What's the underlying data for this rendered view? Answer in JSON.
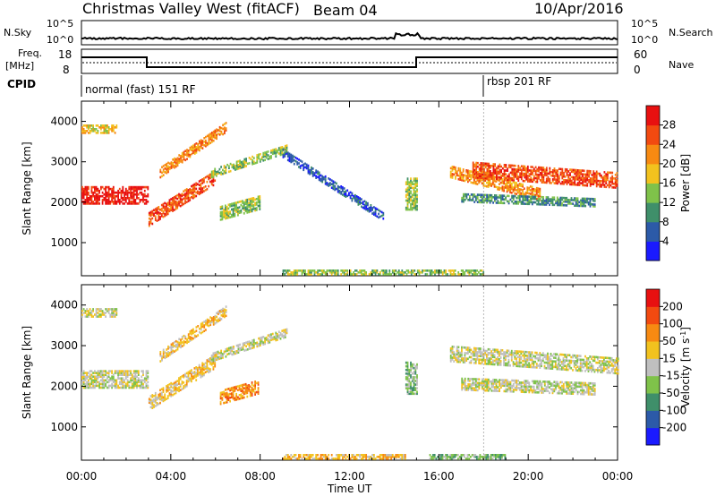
{
  "header": {
    "station": "Christmas Valley West (fitACF)",
    "beam": "Beam 04",
    "date": "10/Apr/2016"
  },
  "strips": {
    "nsky_label": "N.Sky",
    "nsky_ticks": [
      "10^5",
      "10^0"
    ],
    "nsearch_label": "N.Search",
    "nsearch_ticks": [
      "10^5",
      "10^0"
    ],
    "freq_label": "Freq.",
    "freq_unit": "[MHz]",
    "freq_ticks": [
      "18",
      "8"
    ],
    "nave_label": "Nave",
    "nave_ticks": [
      "60",
      "0"
    ],
    "cpid_label": "CPID",
    "cpid_modes": [
      {
        "label": "normal (fast) 151 RF",
        "start_h": 0
      },
      {
        "label": "rbsp 201 RF",
        "start_h": 18
      }
    ]
  },
  "chart_data": [
    {
      "type": "heatmap",
      "panel": "power",
      "ylabel": "Slant Range [km]",
      "yticks": [
        1000,
        2000,
        3000,
        4000
      ],
      "ylim": [
        180,
        4500
      ],
      "xlim_hours": [
        0,
        24
      ],
      "colorbar": {
        "label": "Power [dB]",
        "ticks": [
          "4",
          "8",
          "12",
          "16",
          "20",
          "24",
          "28"
        ],
        "colors": [
          "#1a1aff",
          "#2c5aa8",
          "#3f8f6a",
          "#7fc24a",
          "#f2c21e",
          "#f78a12",
          "#f24a10",
          "#e81010"
        ]
      },
      "bands": [
        {
          "h0": 0.0,
          "h1": 3.0,
          "r0": 1950,
          "r1": 2400,
          "slope": 0,
          "level": 7
        },
        {
          "h0": 0.0,
          "h1": 1.6,
          "r0": 3700,
          "r1": 3900,
          "slope": 0,
          "level": 4
        },
        {
          "h0": 3.0,
          "h1": 6.0,
          "r0": 1400,
          "r1": 1750,
          "slope": 350,
          "level": 6
        },
        {
          "h0": 3.5,
          "h1": 6.5,
          "r0": 2600,
          "r1": 2850,
          "slope": 380,
          "level": 5
        },
        {
          "h0": 5.8,
          "h1": 9.2,
          "r0": 2600,
          "r1": 2800,
          "slope": 180,
          "level": 3
        },
        {
          "h0": 6.2,
          "h1": 8.0,
          "r0": 1550,
          "r1": 1900,
          "slope": 150,
          "level": 3
        },
        {
          "h0": 9.0,
          "h1": 13.5,
          "r0": 3100,
          "r1": 3300,
          "slope": -350,
          "level": 1
        },
        {
          "h0": 14.5,
          "h1": 15.0,
          "r0": 1800,
          "r1": 2600,
          "slope": 0,
          "level": 3
        },
        {
          "h0": 16.5,
          "h1": 20.5,
          "r0": 2600,
          "r1": 2900,
          "slope": -140,
          "level": 5
        },
        {
          "h0": 17.5,
          "h1": 24.0,
          "r0": 2600,
          "r1": 3000,
          "slope": -40,
          "level": 6
        },
        {
          "h0": 17.0,
          "h1": 23.0,
          "r0": 2000,
          "r1": 2200,
          "slope": -20,
          "level": 2
        },
        {
          "h0": 9.0,
          "h1": 18.0,
          "r0": 200,
          "r1": 330,
          "slope": 0,
          "level": 3
        }
      ]
    },
    {
      "type": "heatmap",
      "panel": "velocity",
      "ylabel": "Slant Range [km]",
      "yticks": [
        1000,
        2000,
        3000,
        4000
      ],
      "ylim": [
        180,
        4500
      ],
      "xlim_hours": [
        0,
        24
      ],
      "xticks": [
        "00:00",
        "04:00",
        "08:00",
        "12:00",
        "16:00",
        "20:00",
        "00:00"
      ],
      "xlabel": "Time UT",
      "colorbar": {
        "label": "Velocity [m s",
        "label_sup": "-1",
        "ticks": [
          "200",
          "100",
          "50",
          "15",
          "-15",
          "-50",
          "-100",
          "-200"
        ],
        "colors": [
          "#1a1aff",
          "#2c5aa8",
          "#3f8f6a",
          "#7fc24a",
          "#bfbfbf",
          "#f2c21e",
          "#f78a12",
          "#f24a10",
          "#e81010"
        ]
      },
      "bands": [
        {
          "h0": 0.0,
          "h1": 3.0,
          "r0": 1950,
          "r1": 2400,
          "slope": 0,
          "level": 4
        },
        {
          "h0": 0.0,
          "h1": 1.6,
          "r0": 3700,
          "r1": 3900,
          "slope": 0,
          "level": 4
        },
        {
          "h0": 3.0,
          "h1": 6.0,
          "r0": 1400,
          "r1": 1750,
          "slope": 350,
          "level": 5
        },
        {
          "h0": 3.5,
          "h1": 6.5,
          "r0": 2600,
          "r1": 2850,
          "slope": 380,
          "level": 5
        },
        {
          "h0": 6.2,
          "h1": 7.9,
          "r0": 1550,
          "r1": 1900,
          "slope": 150,
          "level": 6
        },
        {
          "h0": 5.8,
          "h1": 9.2,
          "r0": 2600,
          "r1": 2800,
          "slope": 180,
          "level": 4
        },
        {
          "h0": 14.5,
          "h1": 15.0,
          "r0": 1800,
          "r1": 2600,
          "slope": 0,
          "level": 3
        },
        {
          "h0": 16.5,
          "h1": 24.0,
          "r0": 2600,
          "r1": 3000,
          "slope": -40,
          "level": 4
        },
        {
          "h0": 17.0,
          "h1": 23.0,
          "r0": 1900,
          "r1": 2200,
          "slope": -20,
          "level": 4
        },
        {
          "h0": 9.0,
          "h1": 14.5,
          "r0": 200,
          "r1": 330,
          "slope": 0,
          "level": 5
        },
        {
          "h0": 15.5,
          "h1": 19.0,
          "r0": 200,
          "r1": 330,
          "slope": 0,
          "level": 3
        }
      ]
    }
  ]
}
